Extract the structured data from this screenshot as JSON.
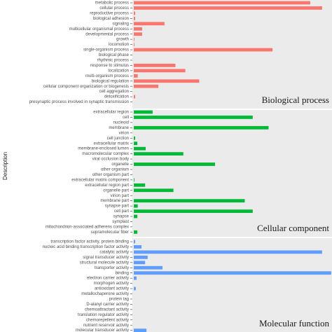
{
  "chart_data": {
    "type": "bar",
    "orientation": "horizontal",
    "ylabel": "Description",
    "xlim": [
      0,
      100
    ],
    "facets": [
      {
        "label": "Biological process",
        "color": "#f8766d",
        "categories": [
          "metabolic process",
          "cellular process",
          "reproductive process",
          "biological adhesion",
          "signaling",
          "multicellular organismal process",
          "developmental process",
          "growth",
          "locomotion",
          "single-organism process",
          "biological phase",
          "rhythmic process",
          "response to stimulus",
          "localization",
          "multi-organism process",
          "biological regulation",
          "cellular component organization or biogenesis",
          "cell aggregation",
          "detoxification",
          "presynaptic process involved in synaptic transmission"
        ],
        "values": [
          89,
          95,
          0.7,
          0.7,
          15.5,
          4.2,
          4.2,
          0.3,
          0.3,
          70,
          0,
          0,
          21,
          26,
          2,
          33,
          12.4,
          0,
          0.7,
          0
        ]
      },
      {
        "label": "Cellular component",
        "color": "#00ba38",
        "categories": [
          "extracellular region",
          "cell",
          "nucleoid",
          "membrane",
          "virion",
          "cell junction",
          "extracellular matrix",
          "membrane-enclosed lumen",
          "macromolecular complex",
          "viral occlusion body",
          "organelle",
          "other organism",
          "other organism part",
          "extracellular matrix component",
          "extracellular region part",
          "organelle part",
          "virion part",
          "membrane part",
          "synapse part",
          "cell part",
          "synapse",
          "symplast",
          "mitochondrion-associated adherens complex",
          "supramolecular fiber"
        ],
        "values": [
          9.5,
          60,
          0,
          68,
          0,
          0.7,
          1.8,
          6,
          25,
          0,
          41,
          0,
          0,
          0.3,
          5.7,
          20,
          0,
          56,
          2,
          60,
          1.8,
          0,
          0,
          1.8
        ]
      },
      {
        "label": "Molecular function",
        "color": "#619cff",
        "categories": [
          "transcription factor activity, protein binding",
          "nucleic acid binding transcription factor activity",
          "catalytic activity",
          "signal transducer activity",
          "structural molecule activity",
          "transporter activity",
          "binding",
          "electron carrier activity",
          "morphogen activity",
          "antioxidant activity",
          "metallochaperone activity",
          "protein tag",
          "D-alanyl carrier activity",
          "chemoattractant activity",
          "translation regulator activity",
          "chemorepellent activity",
          "nutrient reservoir activity",
          "molecular transducer activity"
        ],
        "values": [
          0.7,
          3.9,
          95,
          7,
          5.7,
          14.5,
          99.6,
          1.4,
          0,
          1,
          0,
          0,
          0,
          0,
          0,
          0,
          0,
          6.4
        ]
      }
    ]
  }
}
